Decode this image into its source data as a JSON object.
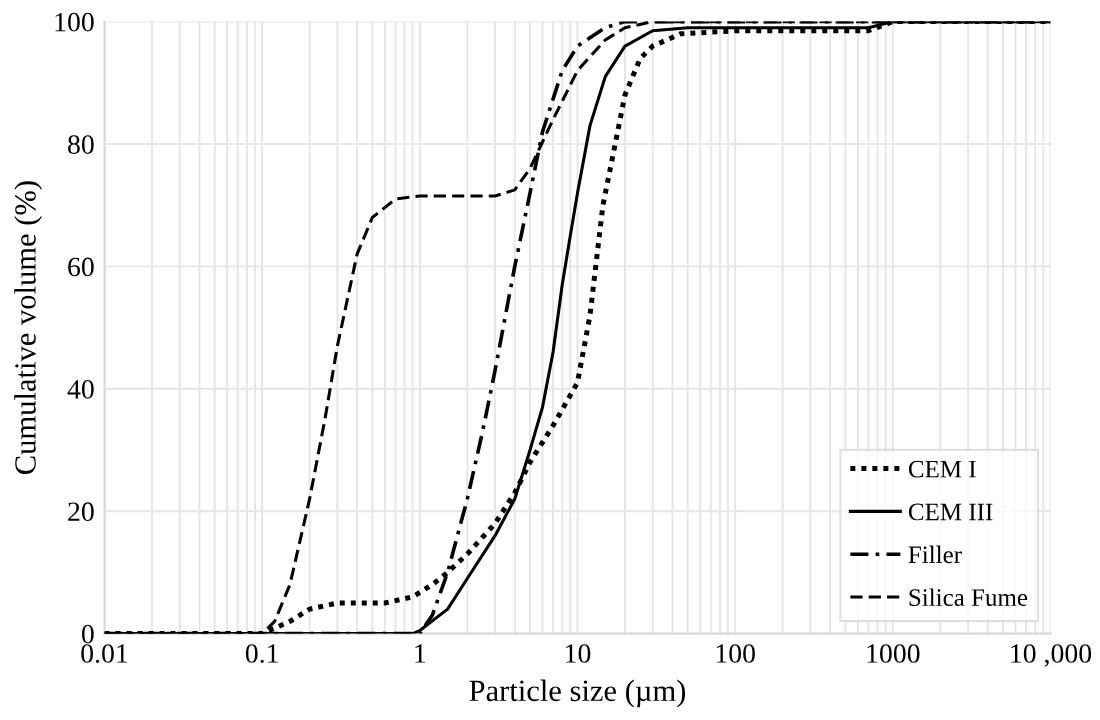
{
  "chart_data": {
    "type": "line",
    "xlabel": "Particle size (µm)",
    "ylabel": "Cumulative volume (%)",
    "log": "x",
    "xlim": [
      0.01,
      10000
    ],
    "ylim": [
      0,
      100
    ],
    "xticks": [
      0.01,
      0.1,
      1,
      10,
      100,
      1000,
      {
        "value": 10000,
        "label": "10 ,000"
      }
    ],
    "yticks": [
      0,
      20,
      40,
      60,
      80,
      100
    ],
    "grid": true,
    "legend": "bottom right",
    "marker": "none",
    "series": [
      {
        "name": "CEM I",
        "color": "#000000",
        "line_style": "dotted",
        "x": [
          0.01,
          0.1,
          0.15,
          0.2,
          0.3,
          0.6,
          0.9,
          1.2,
          1.5,
          2,
          3,
          4,
          5,
          7,
          10,
          12,
          14.5,
          20,
          25,
          30,
          45,
          100,
          700,
          1000,
          10000
        ],
        "values": [
          0,
          0,
          2,
          4,
          5,
          5,
          6,
          8,
          10,
          13,
          18,
          23,
          28,
          34,
          41,
          52,
          70,
          88,
          94,
          96,
          98,
          98.5,
          98.5,
          100,
          100
        ]
      },
      {
        "name": "CEM III",
        "color": "#000000",
        "line_style": "solid",
        "x": [
          0.01,
          0.9,
          1,
          1.5,
          2,
          3,
          4,
          5,
          6,
          7,
          8,
          9,
          10,
          12,
          15,
          20,
          30,
          50,
          700,
          1000,
          10000
        ],
        "values": [
          0,
          0,
          0.5,
          4,
          9,
          16,
          22,
          30,
          37,
          46,
          57,
          65,
          72,
          83,
          91,
          96,
          98.5,
          99,
          99,
          100,
          100
        ]
      },
      {
        "name": "Filler",
        "color": "#000000",
        "line_style": "dashdot",
        "x": [
          0.01,
          1,
          1.2,
          1.5,
          2,
          2.5,
          3,
          4,
          5,
          6,
          8,
          10,
          15,
          20,
          10000
        ],
        "values": [
          0,
          0,
          3,
          10,
          22,
          33,
          43,
          60,
          72,
          82,
          92,
          96,
          99,
          100,
          100
        ]
      },
      {
        "name": "Silica Fume",
        "color": "#000000",
        "line_style": "dashed",
        "x": [
          0.01,
          0.1,
          0.12,
          0.15,
          0.2,
          0.25,
          0.3,
          0.4,
          0.5,
          0.7,
          1,
          3,
          4,
          5,
          7,
          10,
          15,
          20,
          30,
          10000
        ],
        "values": [
          0,
          0,
          2,
          8,
          22,
          35,
          47,
          62,
          68,
          71,
          71.5,
          71.5,
          72.5,
          76,
          84,
          92,
          97,
          99,
          100,
          100
        ]
      }
    ]
  }
}
